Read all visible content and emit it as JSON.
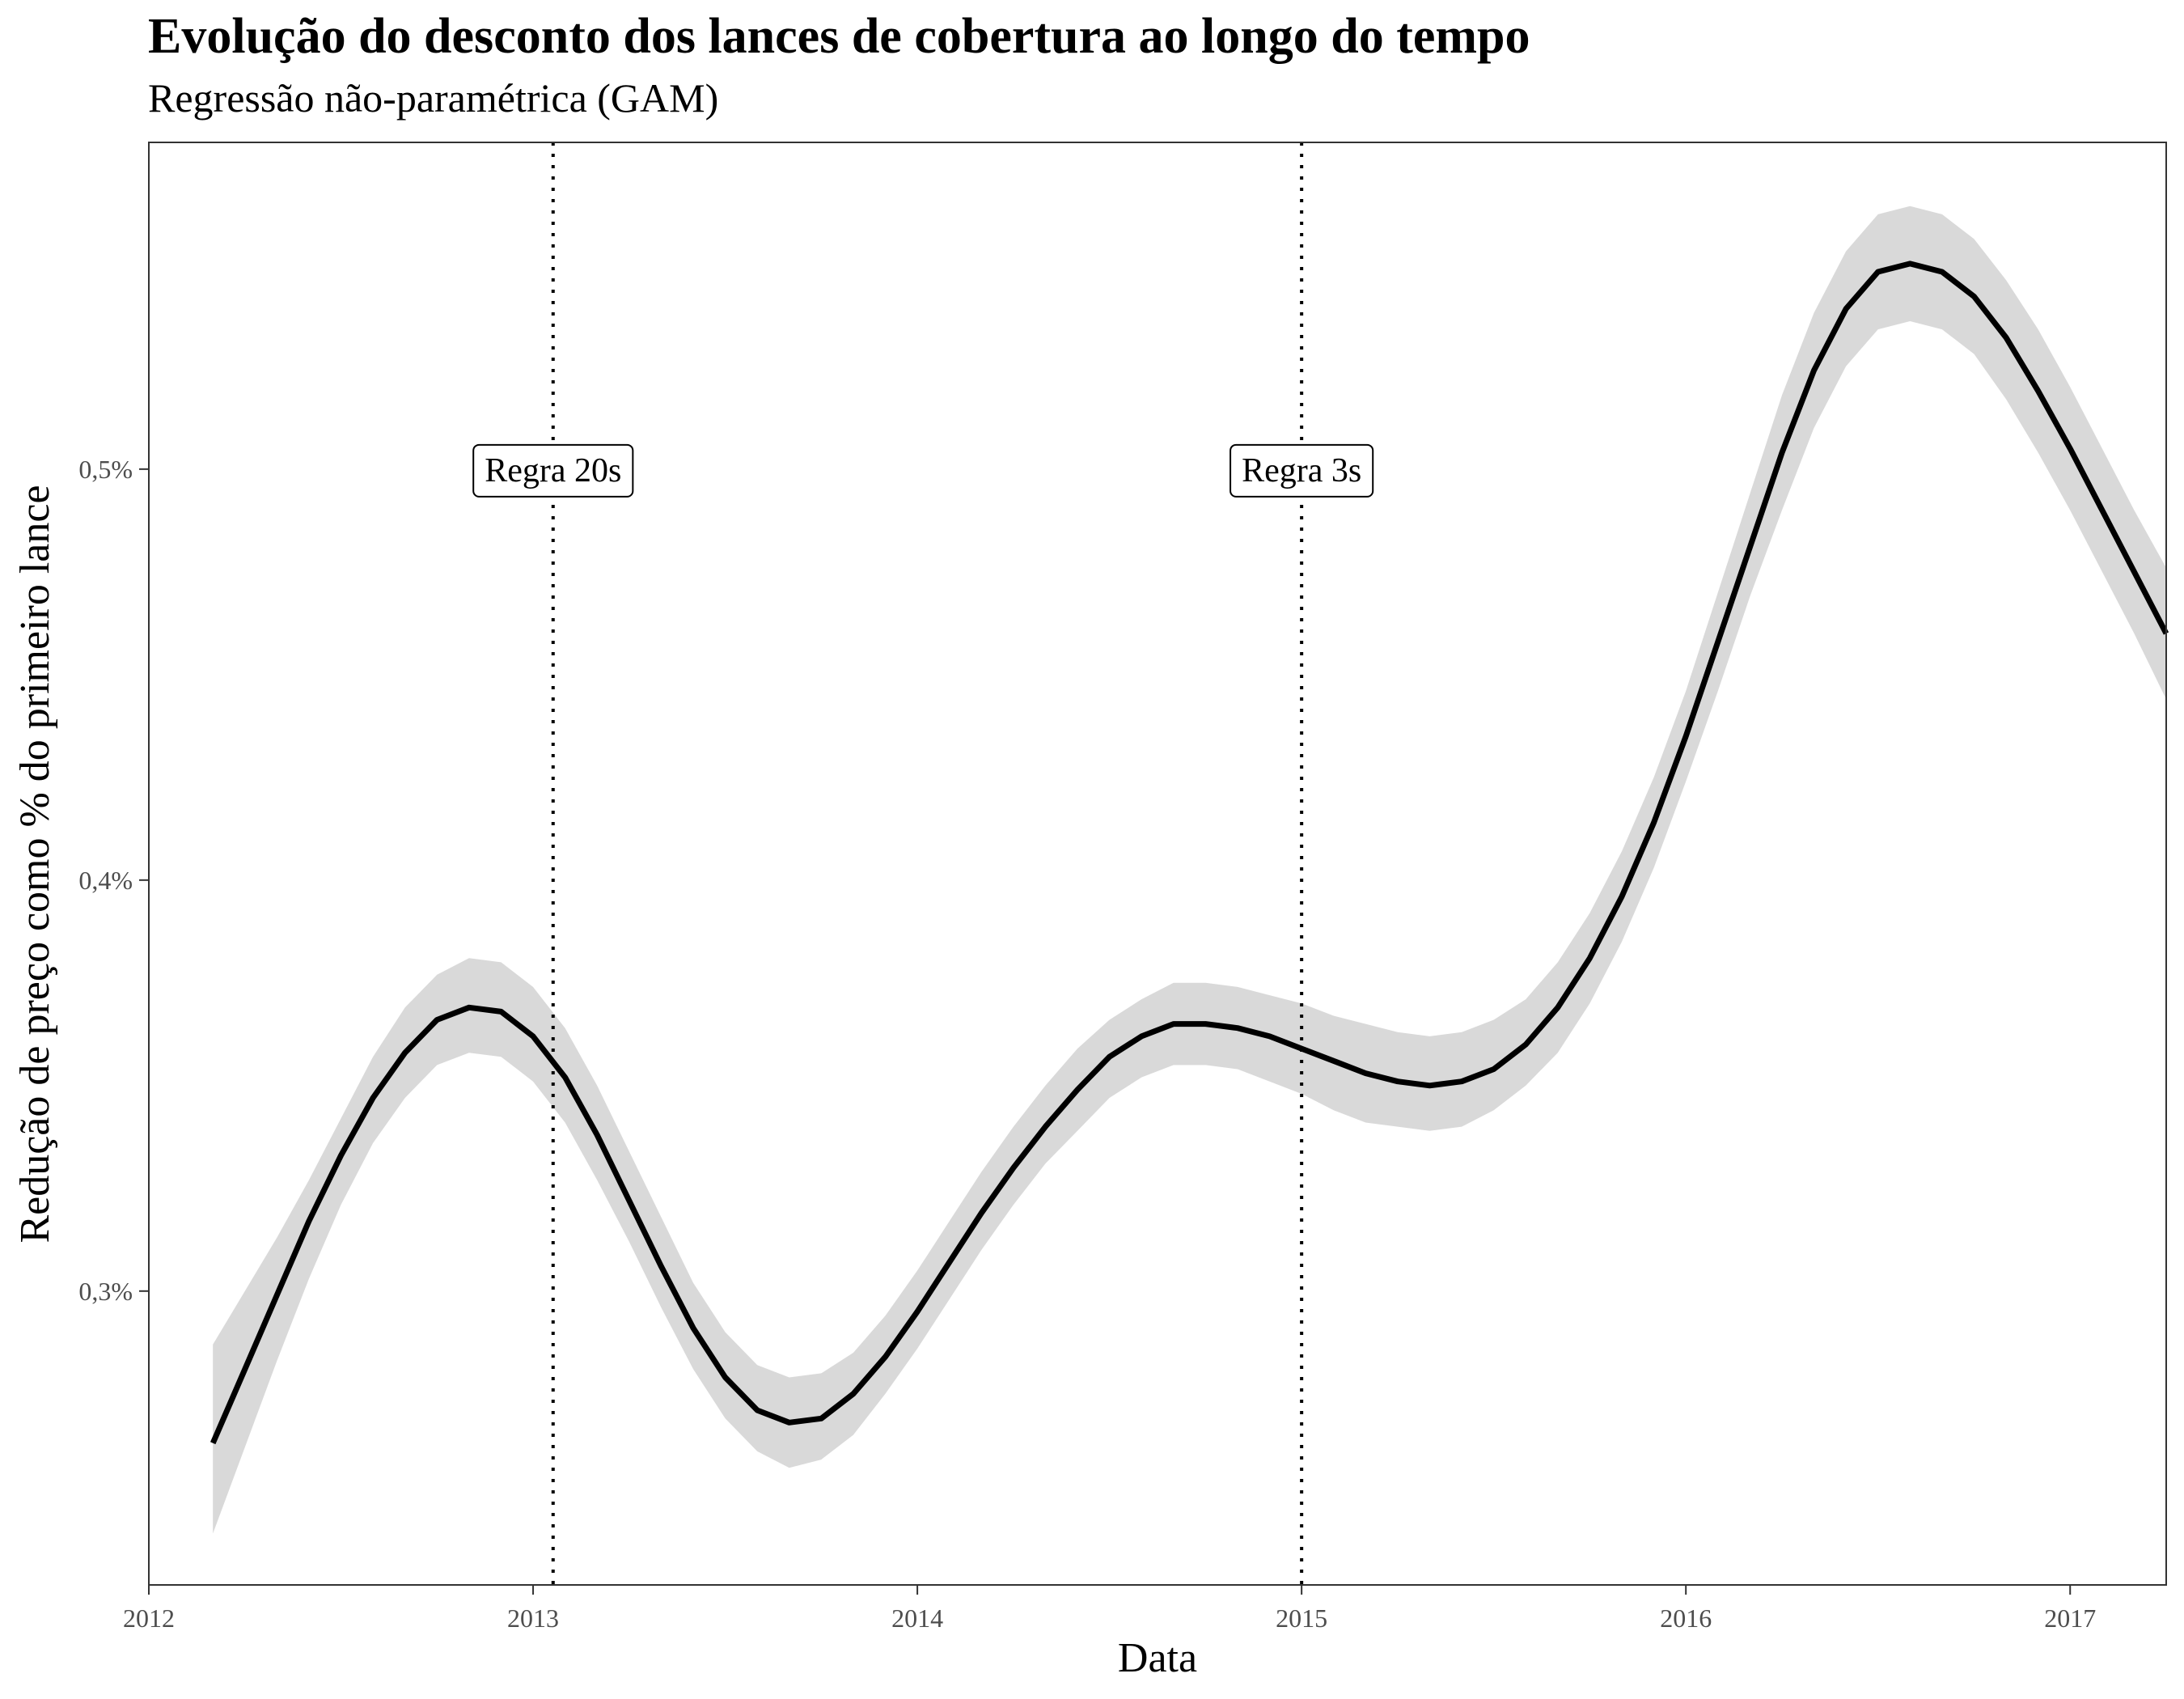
{
  "chart_data": {
    "type": "line",
    "title": "Evolução do desconto dos lances de cobertura ao longo do tempo",
    "subtitle": "Regressão não-paramétrica (GAM)",
    "xlabel": "Data",
    "ylabel": "Redução de preço como % do primeiro lance",
    "x_ticks": [
      "2012",
      "2013",
      "2014",
      "2015",
      "2016",
      "2017"
    ],
    "y_ticks": [
      "0,3%",
      "0,4%",
      "0,5%"
    ],
    "xlim": [
      "2012-01-01",
      "2017-04-01"
    ],
    "ylim": [
      0.2285,
      0.5795
    ],
    "grid": false,
    "colors": {
      "line": "#000000",
      "ribbon": "#d9d9d9",
      "frame": "#333333",
      "tick_text": "#4d4d4d"
    },
    "series": [
      {
        "x": [
          "2012-03",
          "2012-04",
          "2012-05",
          "2012-06",
          "2012-07",
          "2012-08",
          "2012-09",
          "2012-10",
          "2012-11",
          "2012-12",
          "2013-01",
          "2013-02",
          "2013-03",
          "2013-04",
          "2013-05",
          "2013-06",
          "2013-07",
          "2013-08",
          "2013-09",
          "2013-10",
          "2013-11",
          "2013-12",
          "2014-01",
          "2014-02",
          "2014-03",
          "2014-04",
          "2014-05",
          "2014-06",
          "2014-07",
          "2014-08",
          "2014-09",
          "2014-10",
          "2014-11",
          "2014-12",
          "2015-01",
          "2015-02",
          "2015-03",
          "2015-04",
          "2015-05",
          "2015-06",
          "2015-07",
          "2015-08",
          "2015-09",
          "2015-10",
          "2015-11",
          "2015-12",
          "2016-01",
          "2016-02",
          "2016-03",
          "2016-04",
          "2016-05",
          "2016-06",
          "2016-07",
          "2016-08",
          "2016-09",
          "2016-10",
          "2016-11",
          "2016-12",
          "2017-01",
          "2017-02",
          "2017-03",
          "2017-04"
        ],
        "values": [
          0.263,
          0.281,
          0.299,
          0.317,
          0.333,
          0.347,
          0.358,
          0.366,
          0.369,
          0.368,
          0.362,
          0.352,
          0.338,
          0.322,
          0.306,
          0.291,
          0.279,
          0.271,
          0.268,
          0.269,
          0.275,
          0.284,
          0.295,
          0.307,
          0.319,
          0.33,
          0.34,
          0.349,
          0.357,
          0.362,
          0.365,
          0.365,
          0.364,
          0.362,
          0.359,
          0.356,
          0.353,
          0.351,
          0.35,
          0.351,
          0.354,
          0.36,
          0.369,
          0.381,
          0.396,
          0.414,
          0.435,
          0.458,
          0.481,
          0.504,
          0.524,
          0.539,
          0.548,
          0.55,
          0.548,
          0.542,
          0.532,
          0.519,
          0.505,
          0.49,
          0.475,
          0.46
        ],
        "ci_lower": [
          0.241,
          0.262,
          0.283,
          0.303,
          0.321,
          0.336,
          0.347,
          0.355,
          0.358,
          0.357,
          0.351,
          0.341,
          0.327,
          0.312,
          0.296,
          0.281,
          0.269,
          0.261,
          0.257,
          0.259,
          0.265,
          0.275,
          0.286,
          0.298,
          0.31,
          0.321,
          0.331,
          0.339,
          0.347,
          0.352,
          0.355,
          0.355,
          0.354,
          0.351,
          0.348,
          0.344,
          0.341,
          0.34,
          0.339,
          0.34,
          0.344,
          0.35,
          0.358,
          0.37,
          0.385,
          0.403,
          0.424,
          0.446,
          0.469,
          0.49,
          0.51,
          0.525,
          0.534,
          0.536,
          0.534,
          0.528,
          0.517,
          0.504,
          0.49,
          0.475,
          0.46,
          0.444
        ],
        "ci_upper": [
          0.287,
          0.3,
          0.313,
          0.327,
          0.342,
          0.357,
          0.369,
          0.377,
          0.381,
          0.38,
          0.374,
          0.364,
          0.35,
          0.334,
          0.318,
          0.302,
          0.29,
          0.282,
          0.279,
          0.28,
          0.285,
          0.294,
          0.305,
          0.317,
          0.329,
          0.34,
          0.35,
          0.359,
          0.366,
          0.371,
          0.375,
          0.375,
          0.374,
          0.372,
          0.37,
          0.367,
          0.365,
          0.363,
          0.362,
          0.363,
          0.366,
          0.371,
          0.38,
          0.392,
          0.407,
          0.425,
          0.446,
          0.47,
          0.494,
          0.518,
          0.538,
          0.553,
          0.562,
          0.564,
          0.562,
          0.556,
          0.546,
          0.534,
          0.52,
          0.505,
          0.49,
          0.476
        ]
      }
    ],
    "annotations": [
      {
        "label": "Regra 20s",
        "x": "2013-01-20",
        "y": 0.5
      },
      {
        "label": "Regra 3s",
        "x": "2015-01-01",
        "y": 0.5
      }
    ]
  }
}
